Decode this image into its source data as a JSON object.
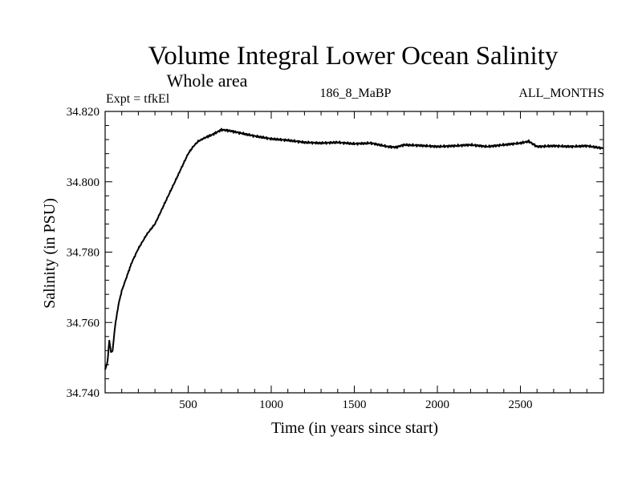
{
  "chart_data": {
    "type": "line",
    "title": "Volume Integral Lower Ocean Salinity",
    "subtitle": "Whole area",
    "info_left": "Expt = tfkEl",
    "info_center": "186_8_MaBP",
    "info_right": "ALL_MONTHS",
    "xlabel": "Time (in years since start)",
    "ylabel": "Salinity (in PSU)",
    "xlim": [
      0,
      3000
    ],
    "ylim": [
      34.74,
      34.82
    ],
    "x_ticks": [
      500,
      1000,
      1500,
      2000,
      2500
    ],
    "x_tick_labels": [
      "500",
      "1000",
      "1500",
      "2000",
      "2500"
    ],
    "y_ticks": [
      34.74,
      34.76,
      34.78,
      34.8,
      34.82
    ],
    "y_tick_labels": [
      "34.740",
      "34.760",
      "34.780",
      "34.800",
      "34.820"
    ],
    "grid": false,
    "series": [
      {
        "name": "",
        "color": "#000000",
        "x": [
          0,
          15,
          25,
          35,
          45,
          60,
          80,
          100,
          130,
          160,
          200,
          250,
          300,
          350,
          400,
          450,
          500,
          530,
          560,
          600,
          650,
          700,
          750,
          800,
          900,
          1000,
          1100,
          1200,
          1300,
          1400,
          1500,
          1600,
          1700,
          1750,
          1800,
          1900,
          2000,
          2100,
          2200,
          2300,
          2400,
          2500,
          2550,
          2600,
          2700,
          2800,
          2900,
          3000
        ],
        "y": [
          34.7465,
          34.749,
          34.755,
          34.7515,
          34.752,
          34.759,
          34.765,
          34.769,
          34.773,
          34.777,
          34.781,
          34.785,
          34.788,
          34.793,
          34.798,
          34.803,
          34.808,
          34.81,
          34.8115,
          34.8125,
          34.8135,
          34.8148,
          34.8145,
          34.814,
          34.813,
          34.8122,
          34.8118,
          34.8112,
          34.811,
          34.8112,
          34.8108,
          34.811,
          34.81,
          34.8098,
          34.8105,
          34.8103,
          34.81,
          34.8102,
          34.8105,
          34.81,
          34.8105,
          34.811,
          34.8115,
          34.81,
          34.8102,
          34.81,
          34.8102,
          34.8095
        ]
      }
    ]
  }
}
